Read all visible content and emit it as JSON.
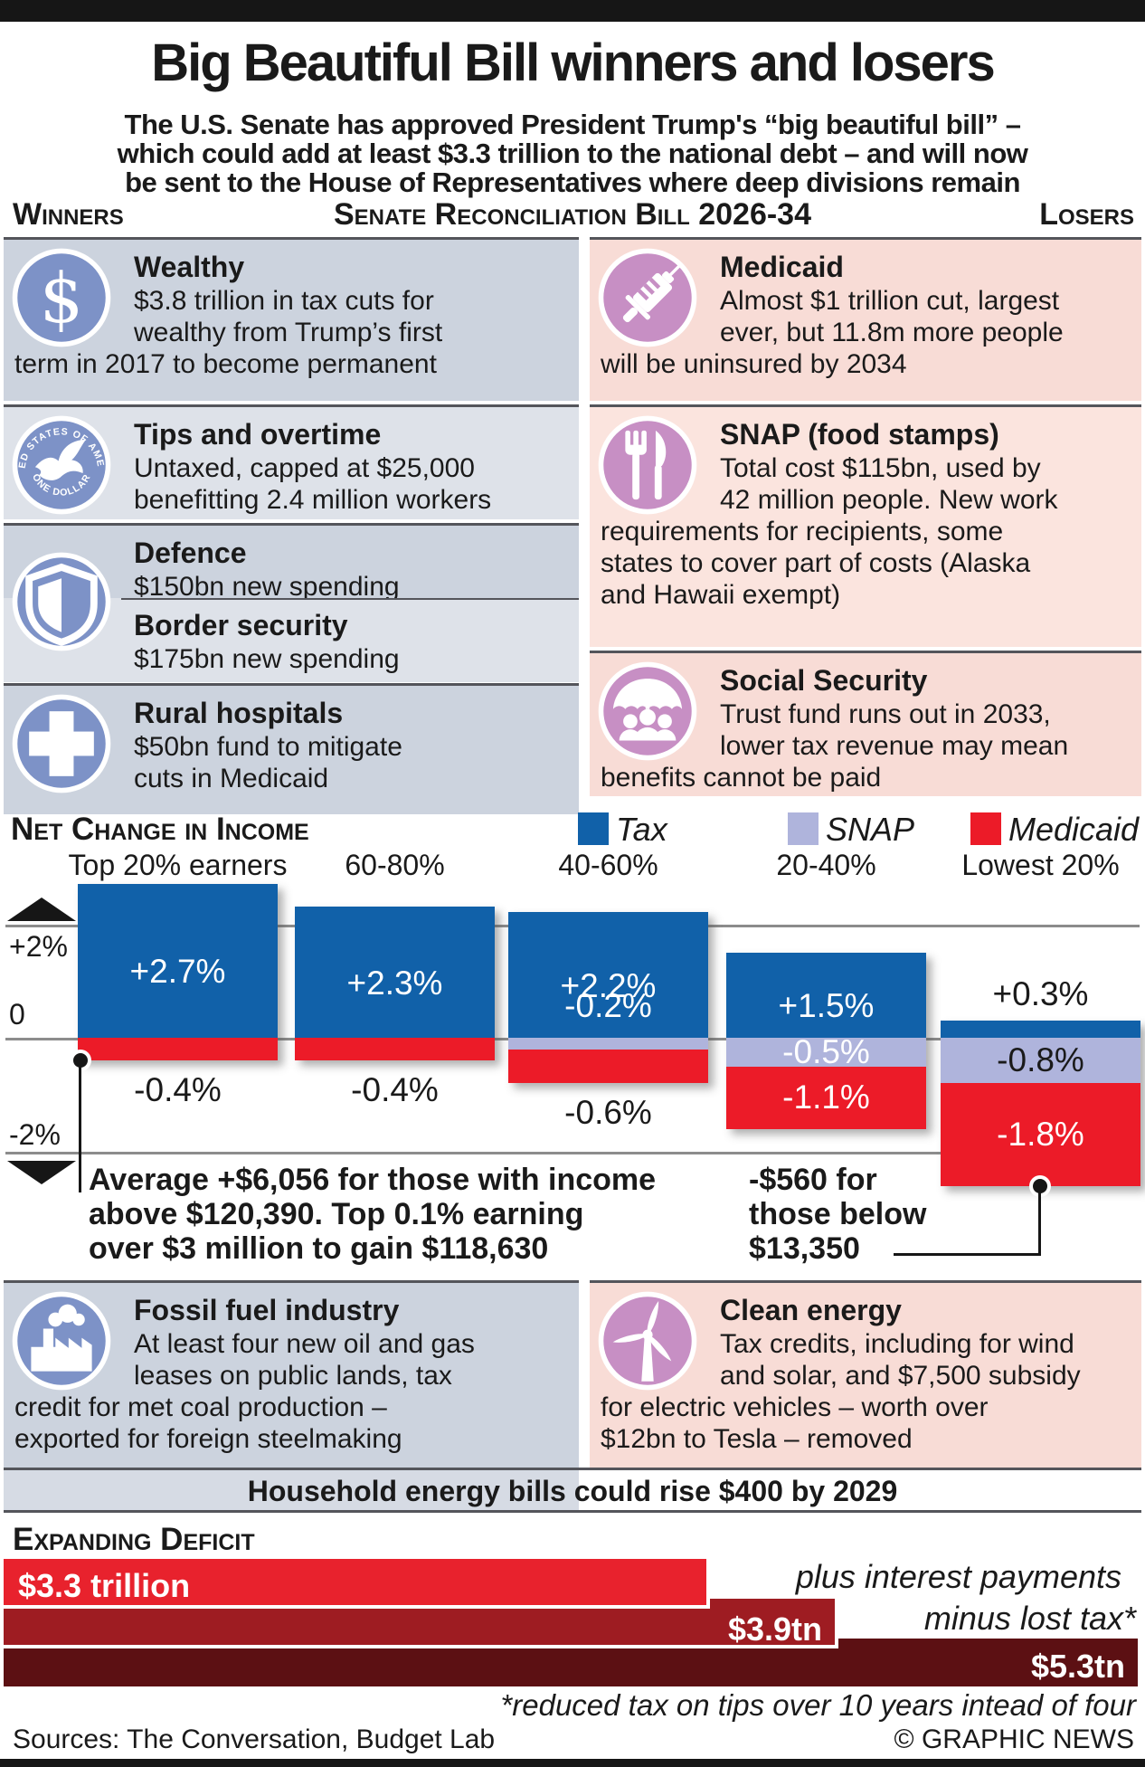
{
  "page": {
    "title": "Big Beautiful Bill winners and losers",
    "subtitle_lines": [
      "The U.S. Senate has approved President Trump's “big beautiful bill” –",
      "which could add at least $3.3 trillion to the national debt – and will now",
      "be sent to the House of Representatives where deep divisions remain"
    ],
    "header_left": "Winners",
    "header_center": "Senate Reconciliation Bill 2026-34",
    "header_right": "Losers"
  },
  "colors": {
    "winner_icon": "#7d92c7",
    "loser_icon": "#c78fc4",
    "winner_panel_dark": "#ccd3de",
    "winner_panel_light": "#dee2e9",
    "loser_panel_dark": "#f8dcd6",
    "loser_panel_light": "#fbe4de",
    "tax_blue": "#1161a9",
    "snap_purple": "#afb4dc",
    "medicaid_red": "#ec1b28"
  },
  "winner_panels": [
    {
      "type": "single",
      "icon": "dollar-sign-icon",
      "title": "Wealthy",
      "indent_lines": 2,
      "lines": [
        "$3.8 trillion in tax cuts for",
        "wealthy from Trump’s first",
        "term in 2017 to become permanent"
      ]
    },
    {
      "type": "single",
      "icon": "dollar-coin-icon",
      "title": "Tips and overtime",
      "indent_lines": 9,
      "lines": [
        "Untaxed, capped at $25,000",
        "benefitting 2.4 million workers"
      ]
    },
    {
      "type": "pair",
      "icon": "shield-icon",
      "items": [
        {
          "title": "Defence",
          "lines": [
            "$150bn new spending"
          ]
        },
        {
          "title": "Border security",
          "lines": [
            "$175bn new spending"
          ]
        }
      ]
    },
    {
      "type": "single",
      "icon": "medical-cross-icon",
      "title": "Rural hospitals",
      "indent_lines": 9,
      "lines": [
        "$50bn fund to mitigate",
        "cuts in Medicaid"
      ]
    }
  ],
  "loser_panels": [
    {
      "type": "single",
      "icon": "syringe-icon",
      "title": "Medicaid",
      "indent_lines": 2,
      "lines": [
        "Almost $1 trillion cut, largest",
        "ever, but 11.8m more people",
        "will be uninsured by 2034"
      ]
    },
    {
      "type": "single",
      "icon": "cutlery-icon",
      "title": "SNAP (food stamps)",
      "indent_lines": 2,
      "lines": [
        "Total cost $115bn, used by",
        "42 million people. New work",
        "requirements for recipients, some",
        "states to cover part of costs (Alaska",
        "and Hawaii exempt)"
      ]
    },
    {
      "type": "single",
      "icon": "umbrella-family-icon",
      "title": "Social Security",
      "indent_lines": 2,
      "lines": [
        "Trust fund runs out in 2033,",
        "lower tax revenue may mean",
        "benefits cannot be paid"
      ]
    }
  ],
  "fossil_panel": [
    {
      "type": "single",
      "icon": "factory-icon",
      "title": "Fossil fuel industry",
      "indent_lines": 2,
      "lines": [
        "At least four new oil and gas",
        "leases on public lands, tax",
        "credit for met coal production –",
        "exported for foreign steelmaking"
      ]
    }
  ],
  "clean_panel": [
    {
      "type": "single",
      "icon": "wind-turbine-icon",
      "title": "Clean energy",
      "indent_lines": 2,
      "lines": [
        "Tax credits, including for wind",
        "and solar, and $7,500 subsidy",
        "for electric vehicles – worth over",
        "$12bn to Tesla – removed"
      ]
    }
  ],
  "energy_note": "Household energy bills could rise $400 by 2029",
  "chart_data": [
    {
      "type": "bar",
      "stacked": true,
      "title": "Net Change in Income",
      "categories": [
        "Top 20% earners",
        "60-80%",
        "40-60%",
        "20-40%",
        "Lowest 20%"
      ],
      "legend": [
        {
          "label": "Tax",
          "color": "#1161a9"
        },
        {
          "label": "SNAP",
          "color": "#afb4dc"
        },
        {
          "label": "Medicaid",
          "color": "#ec1b28"
        }
      ],
      "ylim": [
        -2,
        2
      ],
      "ytick_labels": [
        "+2%",
        "0",
        "-2%"
      ],
      "grid": true,
      "bars": [
        {
          "category": "Top 20% earners",
          "segments": [
            {
              "series": "Tax",
              "value": 2.7,
              "label": "+2.7%",
              "placement": "inside",
              "label_color": "#ffffff"
            },
            {
              "series": "Medicaid",
              "value": -0.4,
              "label": "-0.4%",
              "placement": "below",
              "label_color": "#1a1a1a"
            }
          ]
        },
        {
          "category": "60-80%",
          "segments": [
            {
              "series": "Tax",
              "value": 2.3,
              "label": "+2.3%",
              "placement": "inside",
              "label_color": "#ffffff"
            },
            {
              "series": "Medicaid",
              "value": -0.4,
              "label": "-0.4%",
              "placement": "below",
              "label_color": "#1a1a1a"
            }
          ]
        },
        {
          "category": "40-60%",
          "segments": [
            {
              "series": "Tax",
              "value": 2.2,
              "label": "+2.2%",
              "placement": "inside",
              "label_color": "#ffffff"
            },
            {
              "series": "SNAP",
              "value": -0.2,
              "label": "-0.2%",
              "placement": "above-zero",
              "label_color": "#ffffff"
            },
            {
              "series": "Medicaid",
              "value": -0.6,
              "label": "-0.6%",
              "placement": "below",
              "label_color": "#1a1a1a"
            }
          ]
        },
        {
          "category": "20-40%",
          "segments": [
            {
              "series": "Tax",
              "value": 1.5,
              "label": "+1.5%",
              "placement": "inside",
              "label_color": "#ffffff"
            },
            {
              "series": "SNAP",
              "value": -0.5,
              "label": "-0.5%",
              "placement": "inside",
              "label_color": "#ffffff"
            },
            {
              "series": "Medicaid",
              "value": -1.1,
              "label": "-1.1%",
              "placement": "inside",
              "label_color": "#ffffff"
            }
          ]
        },
        {
          "category": "Lowest 20%",
          "segments": [
            {
              "series": "Tax",
              "value": 0.3,
              "label": "+0.3%",
              "placement": "above",
              "label_color": "#1a1a1a"
            },
            {
              "series": "SNAP",
              "value": -0.8,
              "label": "-0.8%",
              "placement": "inside",
              "label_color": "#1a1a1a"
            },
            {
              "series": "Medicaid",
              "value": -1.8,
              "label": "-1.8%",
              "placement": "inside",
              "label_color": "#ffffff"
            }
          ]
        }
      ],
      "annotations": [
        {
          "lines": [
            "Average +$6,056 for those with income",
            "above $120,390. Top 0.1% earning",
            "over $3 million to gain $118,630"
          ]
        },
        {
          "lines": [
            "-$560 for",
            "those below",
            "$13,350"
          ]
        }
      ]
    },
    {
      "type": "bar",
      "orientation": "horizontal",
      "title": "Expanding Deficit",
      "values": [
        3.3,
        3.9,
        5.3
      ],
      "unit": "trillion USD",
      "bar_labels": [
        "$3.3 trillion",
        "$3.9tn",
        "$5.3tn"
      ],
      "colors": [
        "#e8222d",
        "#9e1c22",
        "#5c1013"
      ],
      "annotations": [
        "plus interest payments",
        "minus lost tax*"
      ],
      "footnote": "*reduced tax on tips over 10 years intead of four"
    }
  ],
  "footer": {
    "sources": "Sources: The Conversation, Budget Lab",
    "credit": "© GRAPHIC NEWS"
  }
}
